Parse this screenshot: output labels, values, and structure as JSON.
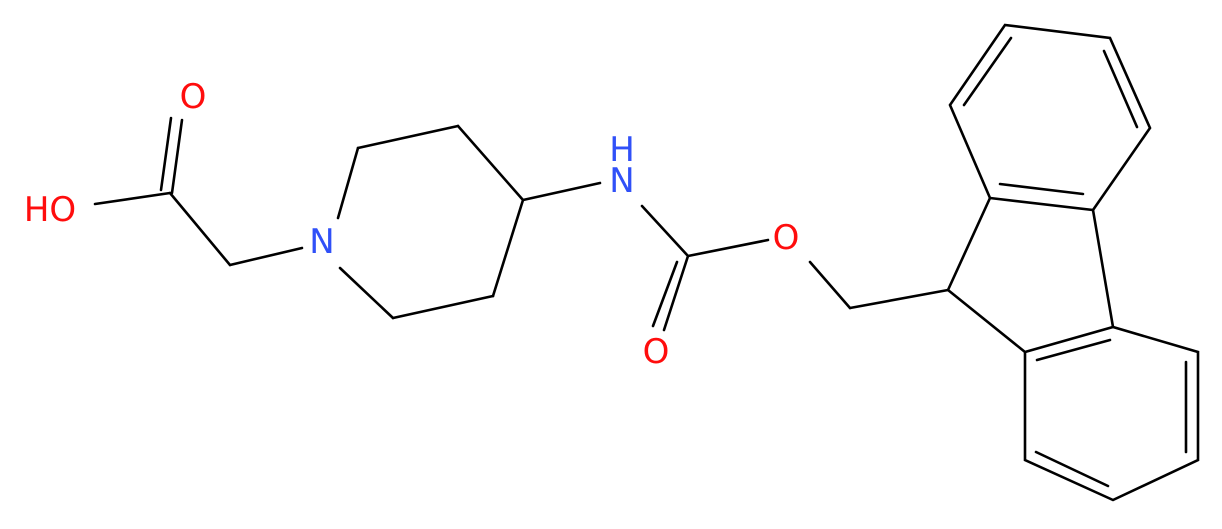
{
  "atoms": [
    {
      "label": "O"
    },
    {
      "label": "HO"
    },
    {
      "label": "N"
    },
    {
      "label": "H"
    },
    {
      "label": "N"
    },
    {
      "label": "O"
    },
    {
      "label": "O"
    }
  ]
}
